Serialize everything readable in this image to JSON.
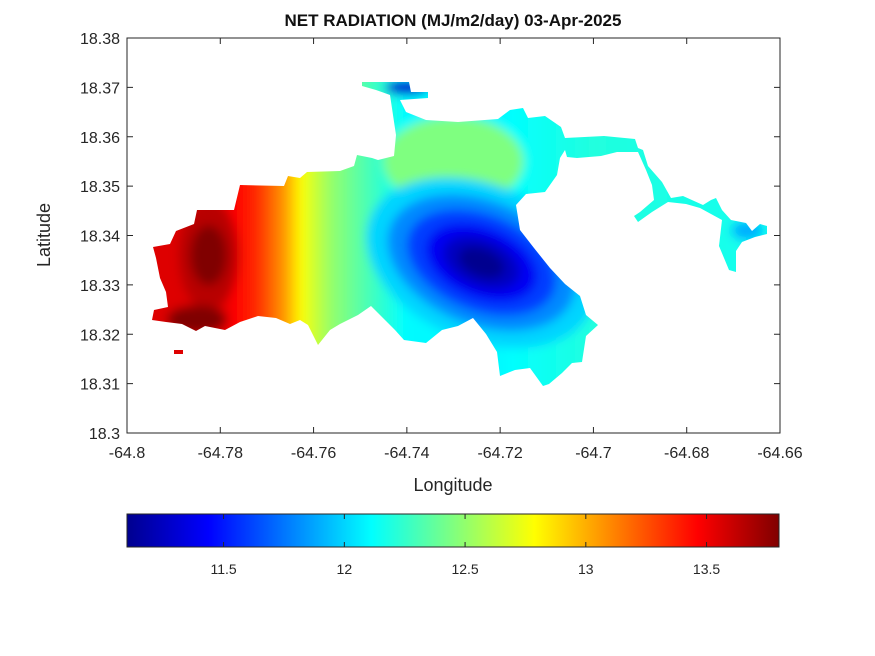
{
  "chart_data": {
    "type": "heatmap",
    "title": "NET RADIATION (MJ/m2/day) 03-Apr-2025",
    "xlabel": "Longitude",
    "ylabel": "Latitude",
    "xlim": [
      -64.8,
      -64.66
    ],
    "ylim": [
      18.3,
      18.38
    ],
    "xticks": [
      -64.8,
      -64.78,
      -64.76,
      -64.74,
      -64.72,
      -64.7,
      -64.68,
      -64.66
    ],
    "xtick_labels": [
      "-64.8",
      "-64.78",
      "-64.76",
      "-64.74",
      "-64.72",
      "-64.7",
      "-64.68",
      "-64.66"
    ],
    "yticks": [
      18.3,
      18.31,
      18.32,
      18.33,
      18.34,
      18.35,
      18.36,
      18.37,
      18.38
    ],
    "ytick_labels": [
      "18.3",
      "18.31",
      "18.32",
      "18.33",
      "18.34",
      "18.35",
      "18.36",
      "18.37",
      "18.38"
    ],
    "colormap": "jet",
    "colorbar": {
      "orientation": "horizontal",
      "placement": "bottom",
      "limits": [
        11.1,
        13.8
      ],
      "ticks": [
        11.5,
        12,
        12.5,
        13,
        13.5
      ],
      "tick_labels": [
        "11.5",
        "12",
        "12.5",
        "13",
        "13.5"
      ]
    },
    "field_summary": {
      "value_range": [
        11.1,
        13.8
      ],
      "maximum": {
        "value": 13.8,
        "lon": -64.782,
        "lat": 18.34
      },
      "minimum": {
        "value": 11.1,
        "lon": -64.725,
        "lat": 18.336
      },
      "gradient": "high in west, decreasing eastward"
    }
  },
  "colors": {
    "background": "#ffffff",
    "axes": "#262626",
    "jet_stops": [
      "#00008f",
      "#0000ff",
      "#00ffff",
      "#ffff00",
      "#ff0000",
      "#800000"
    ]
  }
}
